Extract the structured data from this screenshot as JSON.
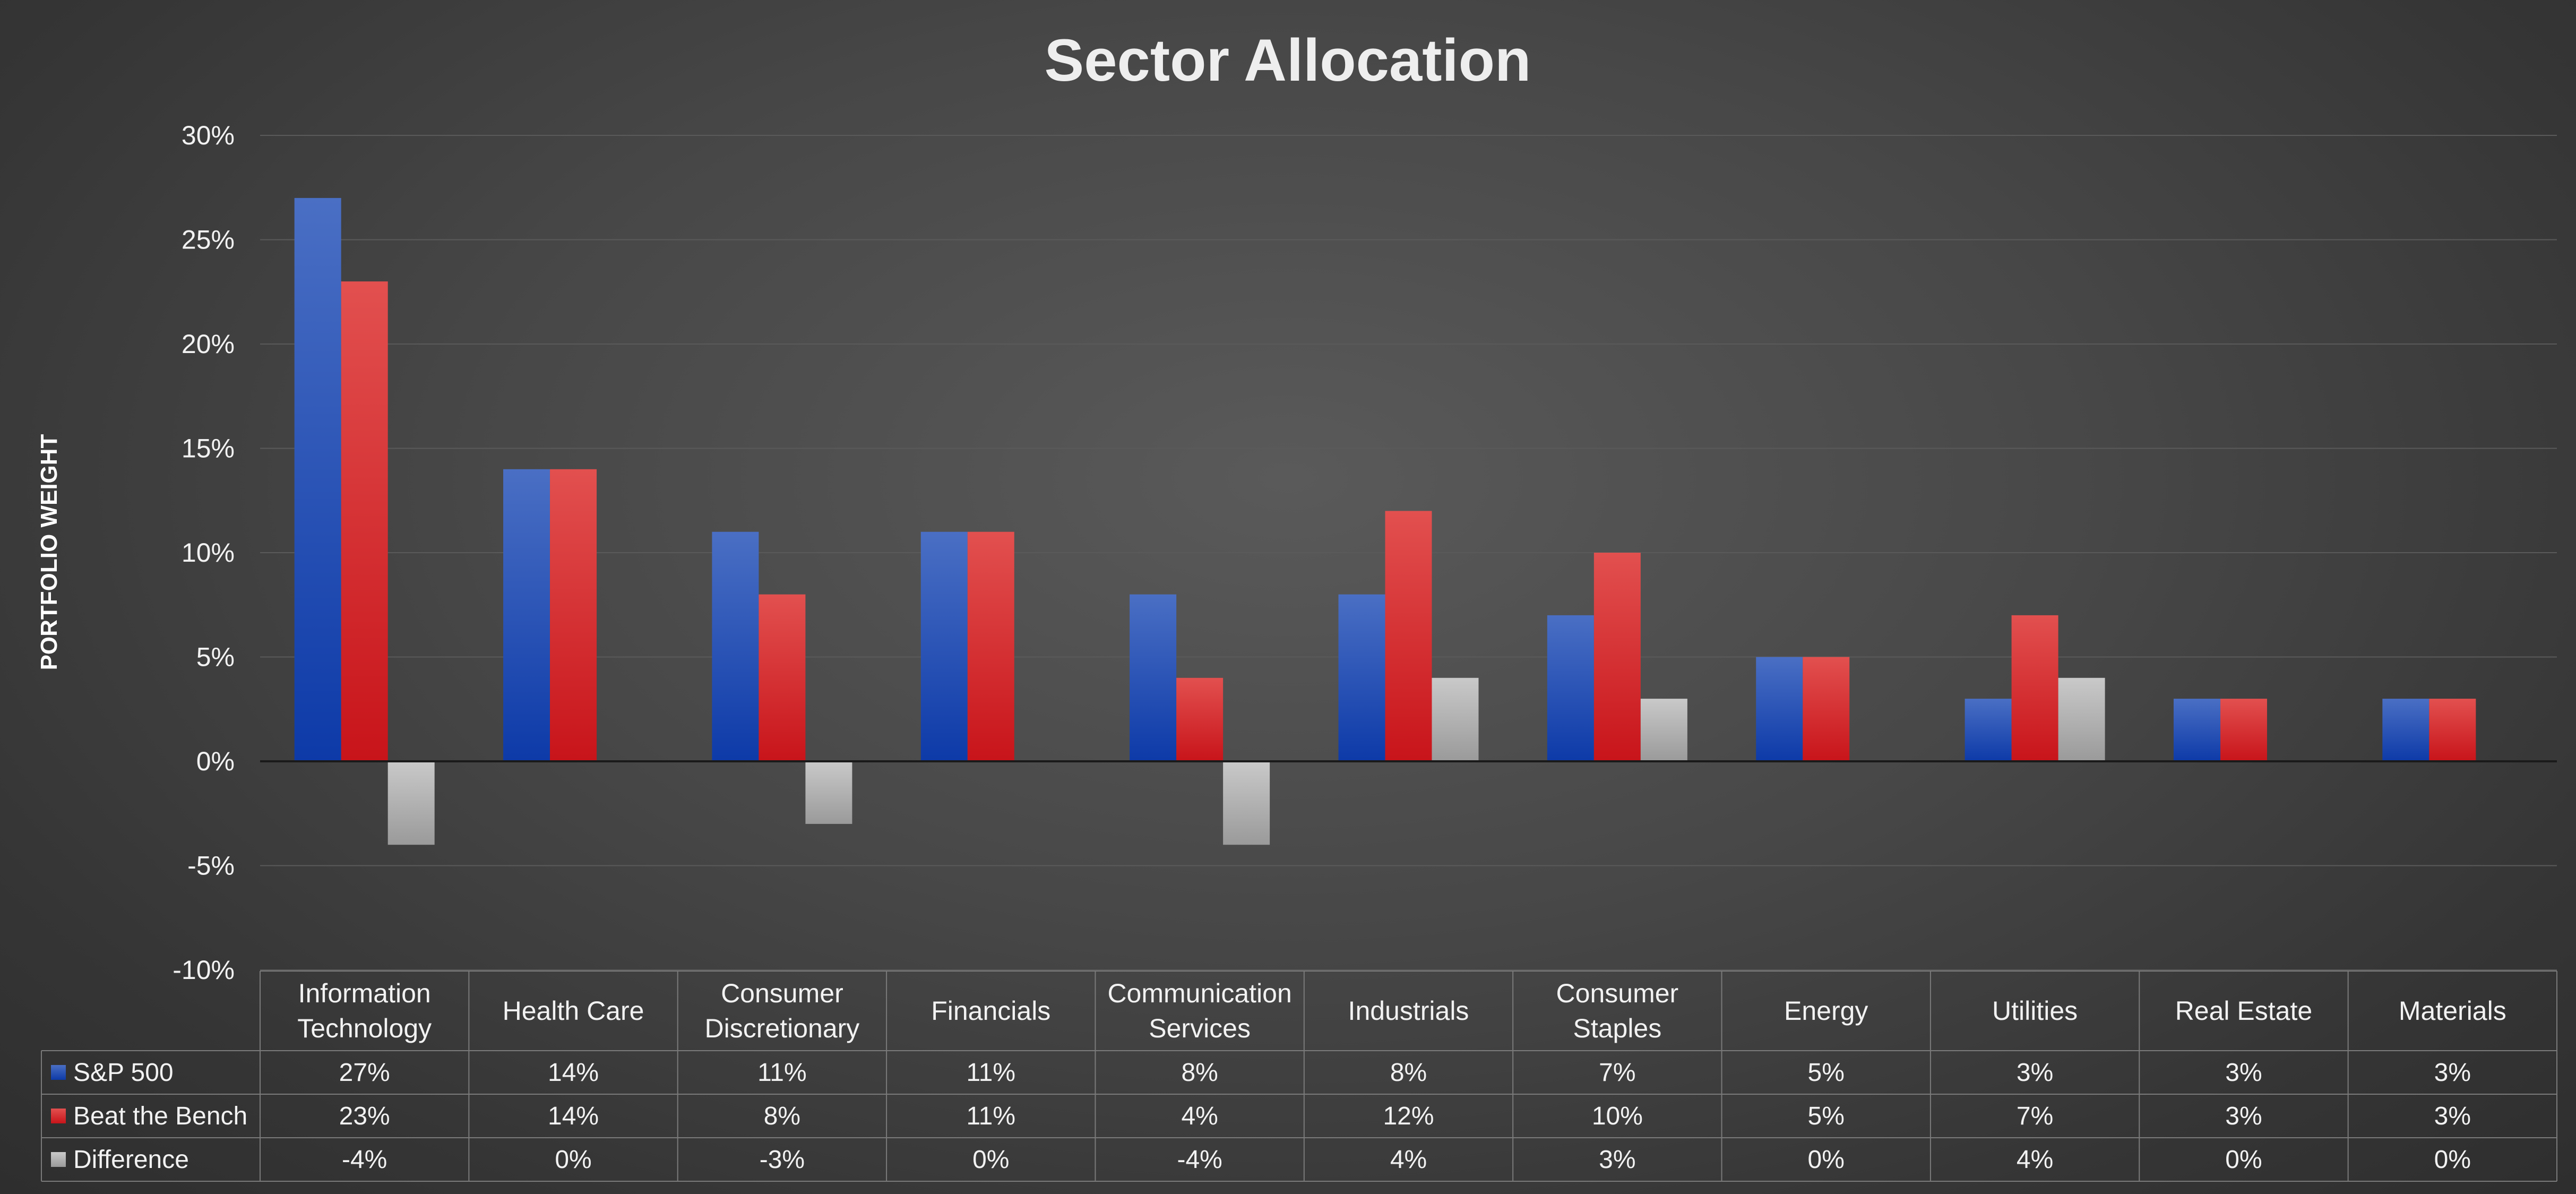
{
  "chart_data": {
    "type": "bar",
    "title": "Sector Allocation",
    "ylabel": "PORTFOLIO WEIGHT",
    "ylim": [
      -10,
      30
    ],
    "ytick_step": 5,
    "ytick_format": "percent",
    "grid": true,
    "legend": "data-table",
    "categories": [
      [
        "Information",
        "Technology"
      ],
      [
        "Health Care"
      ],
      [
        "Consumer",
        "Discretionary"
      ],
      [
        "Financials"
      ],
      [
        "Communication",
        "Services"
      ],
      [
        "Industrials"
      ],
      [
        "Consumer",
        "Staples"
      ],
      [
        "Energy"
      ],
      [
        "Utilities"
      ],
      [
        "Real Estate"
      ],
      [
        "Materials"
      ]
    ],
    "series": [
      {
        "name": "S&P 500",
        "color": "#1a47b8",
        "values": [
          27,
          14,
          11,
          11,
          8,
          8,
          7,
          5,
          3,
          3,
          3
        ],
        "labels": [
          "27%",
          "14%",
          "11%",
          "11%",
          "8%",
          "8%",
          "7%",
          "5%",
          "3%",
          "3%",
          "3%"
        ]
      },
      {
        "name": "Beat the Bench",
        "color": "#d81c22",
        "values": [
          23,
          14,
          8,
          11,
          4,
          12,
          10,
          5,
          7,
          3,
          3
        ],
        "labels": [
          "23%",
          "14%",
          "8%",
          "11%",
          "4%",
          "12%",
          "10%",
          "5%",
          "7%",
          "3%",
          "3%"
        ]
      },
      {
        "name": "Difference",
        "color": "#a8a8a8",
        "values": [
          -4,
          0,
          -3,
          0,
          -4,
          4,
          3,
          0,
          4,
          0,
          0
        ],
        "labels": [
          "-4%",
          "0%",
          "-3%",
          "0%",
          "-4%",
          "4%",
          "3%",
          "0%",
          "4%",
          "0%",
          "0%"
        ]
      }
    ]
  }
}
